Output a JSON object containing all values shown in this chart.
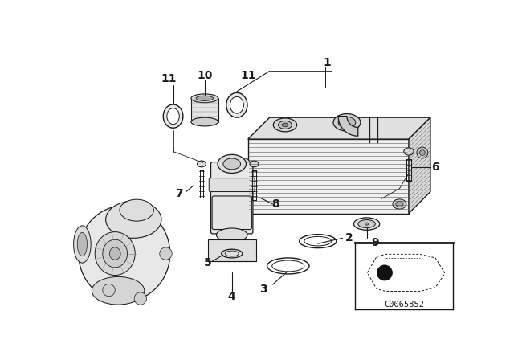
{
  "background_color": "#ffffff",
  "fig_width": 6.4,
  "fig_height": 4.48,
  "dpi": 100,
  "line_color": "#1a1a1a",
  "diagram_code": "C0065852",
  "label_fs": 9,
  "bold_label_fs": 10
}
